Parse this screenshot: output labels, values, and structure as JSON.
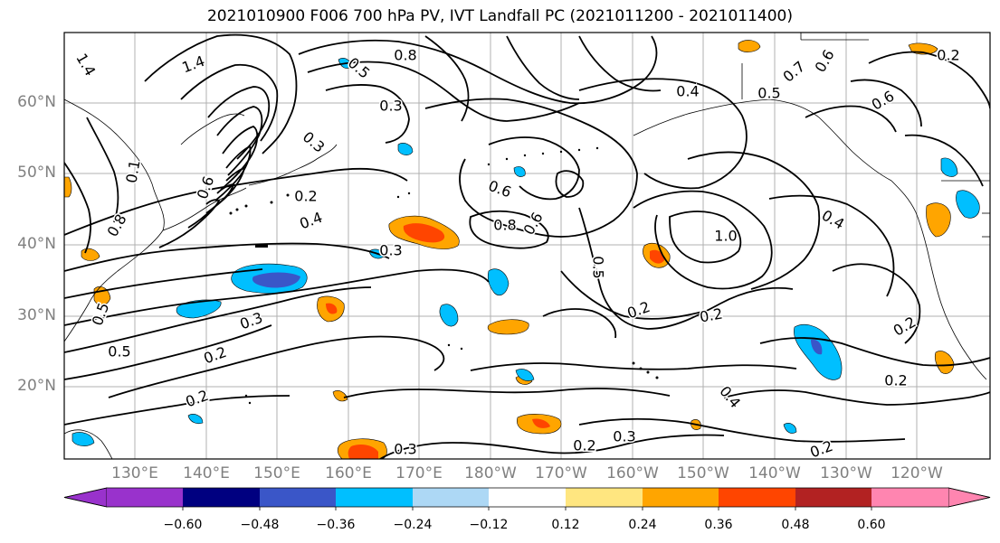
{
  "title": "2021010900 F006 700 hPa PV, IVT Landfall PC (2021011200 - 2021011400)",
  "lat_labels": [
    "60°N",
    "50°N",
    "40°N",
    "30°N",
    "20°N"
  ],
  "lon_labels": [
    "130°E",
    "140°E",
    "150°E",
    "160°E",
    "170°E",
    "180°W",
    "170°W",
    "160°W",
    "150°W",
    "140°W",
    "130°W",
    "120°W"
  ],
  "colorbar": {
    "colors": [
      "#9932CC",
      "#000080",
      "#3A56C8",
      "#00BFFF",
      "#ADD8F5",
      "#FFFFFF",
      "#FFE680",
      "#FFA500",
      "#FF4500",
      "#B22222",
      "#FF85B0"
    ],
    "tick_labels": [
      "−0.60",
      "−0.48",
      "−0.36",
      "−0.24",
      "−0.12",
      "0.12",
      "0.24",
      "0.36",
      "0.48",
      "0.60"
    ]
  },
  "contour_labels": [
    "1.4",
    "1.4",
    "0.5",
    "0.8",
    "0.3",
    "0.3",
    "0.6",
    "0.2",
    "0.4",
    "0.3",
    "0.3",
    "0.2",
    "0.2",
    "0.3",
    "0.5",
    "0.5",
    "0.8",
    "0.6",
    "0.1",
    "0.8",
    "0.6",
    "1.0",
    "0.5",
    "0.2",
    "0.2",
    "0.4",
    "0.5",
    "0.7",
    "0.6",
    "0.4",
    "0.2",
    "0.2",
    "0.2",
    "0.4",
    "0.3",
    "0.2",
    "0.2",
    "0.6"
  ]
}
